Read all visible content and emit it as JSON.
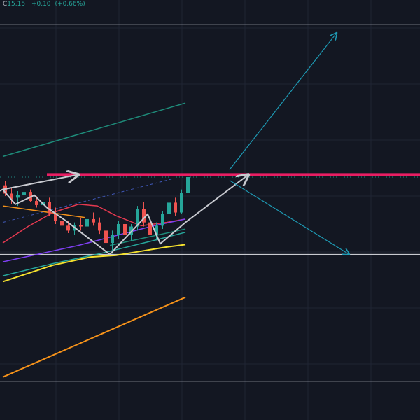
{
  "header": {
    "close_label": "C",
    "close_value": "15.15",
    "change": "+0.10",
    "change_pct": "(+0.66%)"
  },
  "colors": {
    "background": "#131722",
    "grid": "#1f2433",
    "up_candle": "#26a69a",
    "down_candle": "#ef5350",
    "white_lines": "#c8cad0",
    "resistance": "#e91e63",
    "projection": "#1e9bb5",
    "channel": "#1e8c7a",
    "ma_red": "#e53950",
    "ma_purple": "#7e3ff2",
    "ma_teal": "#26a69a",
    "ma_yellow": "#f5e12e",
    "ma_orange": "#f7931a"
  },
  "chart_data": {
    "type": "candlestick",
    "y_range": [
      12.2,
      17.3
    ],
    "x_range": [
      0,
      60
    ],
    "horizontal_levels": [
      {
        "name": "upper",
        "price": 17.0,
        "color": "white"
      },
      {
        "name": "resistance",
        "price": 15.18,
        "color": "resistance"
      },
      {
        "name": "support",
        "price": 14.21,
        "color": "white"
      },
      {
        "name": "lower",
        "price": 12.67,
        "color": "white"
      }
    ],
    "last_price": 15.15,
    "candles": [
      {
        "t": 0,
        "o": 15.05,
        "h": 15.1,
        "l": 14.92,
        "c": 14.95
      },
      {
        "t": 1,
        "o": 14.95,
        "h": 15.02,
        "l": 14.82,
        "c": 14.88
      },
      {
        "t": 2,
        "o": 14.9,
        "h": 14.98,
        "l": 14.8,
        "c": 14.93
      },
      {
        "t": 3,
        "o": 14.93,
        "h": 15.02,
        "l": 14.88,
        "c": 14.97
      },
      {
        "t": 4,
        "o": 14.97,
        "h": 15.0,
        "l": 14.85,
        "c": 14.86
      },
      {
        "t": 5,
        "o": 14.86,
        "h": 14.92,
        "l": 14.78,
        "c": 14.81
      },
      {
        "t": 6,
        "o": 14.81,
        "h": 14.88,
        "l": 14.74,
        "c": 14.85
      },
      {
        "t": 7,
        "o": 14.85,
        "h": 14.9,
        "l": 14.68,
        "c": 14.71
      },
      {
        "t": 8,
        "o": 14.71,
        "h": 14.78,
        "l": 14.58,
        "c": 14.62
      },
      {
        "t": 9,
        "o": 14.62,
        "h": 14.7,
        "l": 14.52,
        "c": 14.56
      },
      {
        "t": 10,
        "o": 14.56,
        "h": 14.62,
        "l": 14.47,
        "c": 14.5
      },
      {
        "t": 11,
        "o": 14.5,
        "h": 14.6,
        "l": 14.45,
        "c": 14.57
      },
      {
        "t": 12,
        "o": 14.57,
        "h": 14.65,
        "l": 14.5,
        "c": 14.55
      },
      {
        "t": 13,
        "o": 14.55,
        "h": 14.68,
        "l": 14.5,
        "c": 14.64
      },
      {
        "t": 14,
        "o": 14.64,
        "h": 14.72,
        "l": 14.56,
        "c": 14.6
      },
      {
        "t": 15,
        "o": 14.6,
        "h": 14.66,
        "l": 14.46,
        "c": 14.5
      },
      {
        "t": 16,
        "o": 14.5,
        "h": 14.56,
        "l": 14.3,
        "c": 14.35
      },
      {
        "t": 17,
        "o": 14.35,
        "h": 14.5,
        "l": 14.22,
        "c": 14.45
      },
      {
        "t": 18,
        "o": 14.45,
        "h": 14.62,
        "l": 14.4,
        "c": 14.58
      },
      {
        "t": 19,
        "o": 14.58,
        "h": 14.64,
        "l": 14.4,
        "c": 14.45
      },
      {
        "t": 20,
        "o": 14.45,
        "h": 14.58,
        "l": 14.38,
        "c": 14.55
      },
      {
        "t": 21,
        "o": 14.55,
        "h": 14.8,
        "l": 14.5,
        "c": 14.76
      },
      {
        "t": 22,
        "o": 14.76,
        "h": 14.85,
        "l": 14.55,
        "c": 14.6
      },
      {
        "t": 23,
        "o": 14.6,
        "h": 14.66,
        "l": 14.4,
        "c": 14.45
      },
      {
        "t": 24,
        "o": 14.45,
        "h": 14.6,
        "l": 14.38,
        "c": 14.56
      },
      {
        "t": 25,
        "o": 14.56,
        "h": 14.74,
        "l": 14.52,
        "c": 14.7
      },
      {
        "t": 26,
        "o": 14.7,
        "h": 14.88,
        "l": 14.66,
        "c": 14.84
      },
      {
        "t": 27,
        "o": 14.84,
        "h": 14.9,
        "l": 14.68,
        "c": 14.72
      },
      {
        "t": 28,
        "o": 14.72,
        "h": 15.0,
        "l": 14.7,
        "c": 14.96
      },
      {
        "t": 29,
        "o": 14.96,
        "h": 15.16,
        "l": 14.92,
        "c": 15.15
      }
    ],
    "moving_averages": [
      {
        "color": "ma_red",
        "points": [
          [
            0,
            14.35
          ],
          [
            4,
            14.55
          ],
          [
            8,
            14.72
          ],
          [
            12,
            14.82
          ],
          [
            15,
            14.8
          ],
          [
            18,
            14.68
          ],
          [
            22,
            14.56
          ],
          [
            26,
            14.6
          ],
          [
            29,
            14.64
          ]
        ]
      },
      {
        "color": "ma_purple",
        "points": [
          [
            0,
            14.12
          ],
          [
            6,
            14.22
          ],
          [
            12,
            14.32
          ],
          [
            18,
            14.44
          ],
          [
            24,
            14.56
          ],
          [
            29,
            14.64
          ]
        ]
      },
      {
        "color": "ma_teal",
        "points": [
          [
            0,
            13.95
          ],
          [
            8,
            14.1
          ],
          [
            16,
            14.23
          ],
          [
            24,
            14.38
          ],
          [
            29,
            14.48
          ]
        ]
      },
      {
        "color": "ma_yellow",
        "points": [
          [
            0,
            13.88
          ],
          [
            8,
            14.08
          ],
          [
            14,
            14.18
          ],
          [
            18,
            14.2
          ],
          [
            22,
            14.25
          ],
          [
            26,
            14.3
          ],
          [
            29,
            14.33
          ]
        ]
      },
      {
        "color": "ma_orange",
        "points": [
          [
            0,
            12.72
          ],
          [
            29,
            13.69
          ]
        ]
      }
    ],
    "trend_lines": [
      {
        "color": "channel",
        "from": [
          0,
          15.4
        ],
        "to": [
          29,
          16.05
        ]
      },
      {
        "color": "channel",
        "from": [
          17,
          14.32
        ],
        "to": [
          29,
          14.52
        ]
      },
      {
        "color": "ma_orange",
        "from": [
          0,
          14.8
        ],
        "to": [
          13,
          14.66
        ]
      }
    ],
    "zigzag": [
      [
        0,
        15.0
      ],
      [
        2,
        14.82
      ],
      [
        5,
        14.93
      ],
      [
        7,
        14.78
      ],
      [
        10,
        14.62
      ],
      [
        17,
        14.21
      ],
      [
        23,
        14.7
      ],
      [
        25,
        14.34
      ],
      [
        29,
        14.6
      ],
      [
        39,
        15.18
      ]
    ],
    "zigzag_start_arrow": [
      [
        -3,
        14.9
      ],
      [
        0,
        15.0
      ],
      [
        12,
        15.18
      ]
    ],
    "projections": [
      {
        "from": [
          36,
          15.24
        ],
        "to": [
          53,
          16.9
        ]
      },
      {
        "from": [
          36,
          15.11
        ],
        "to": [
          55,
          14.21
        ]
      }
    ]
  }
}
